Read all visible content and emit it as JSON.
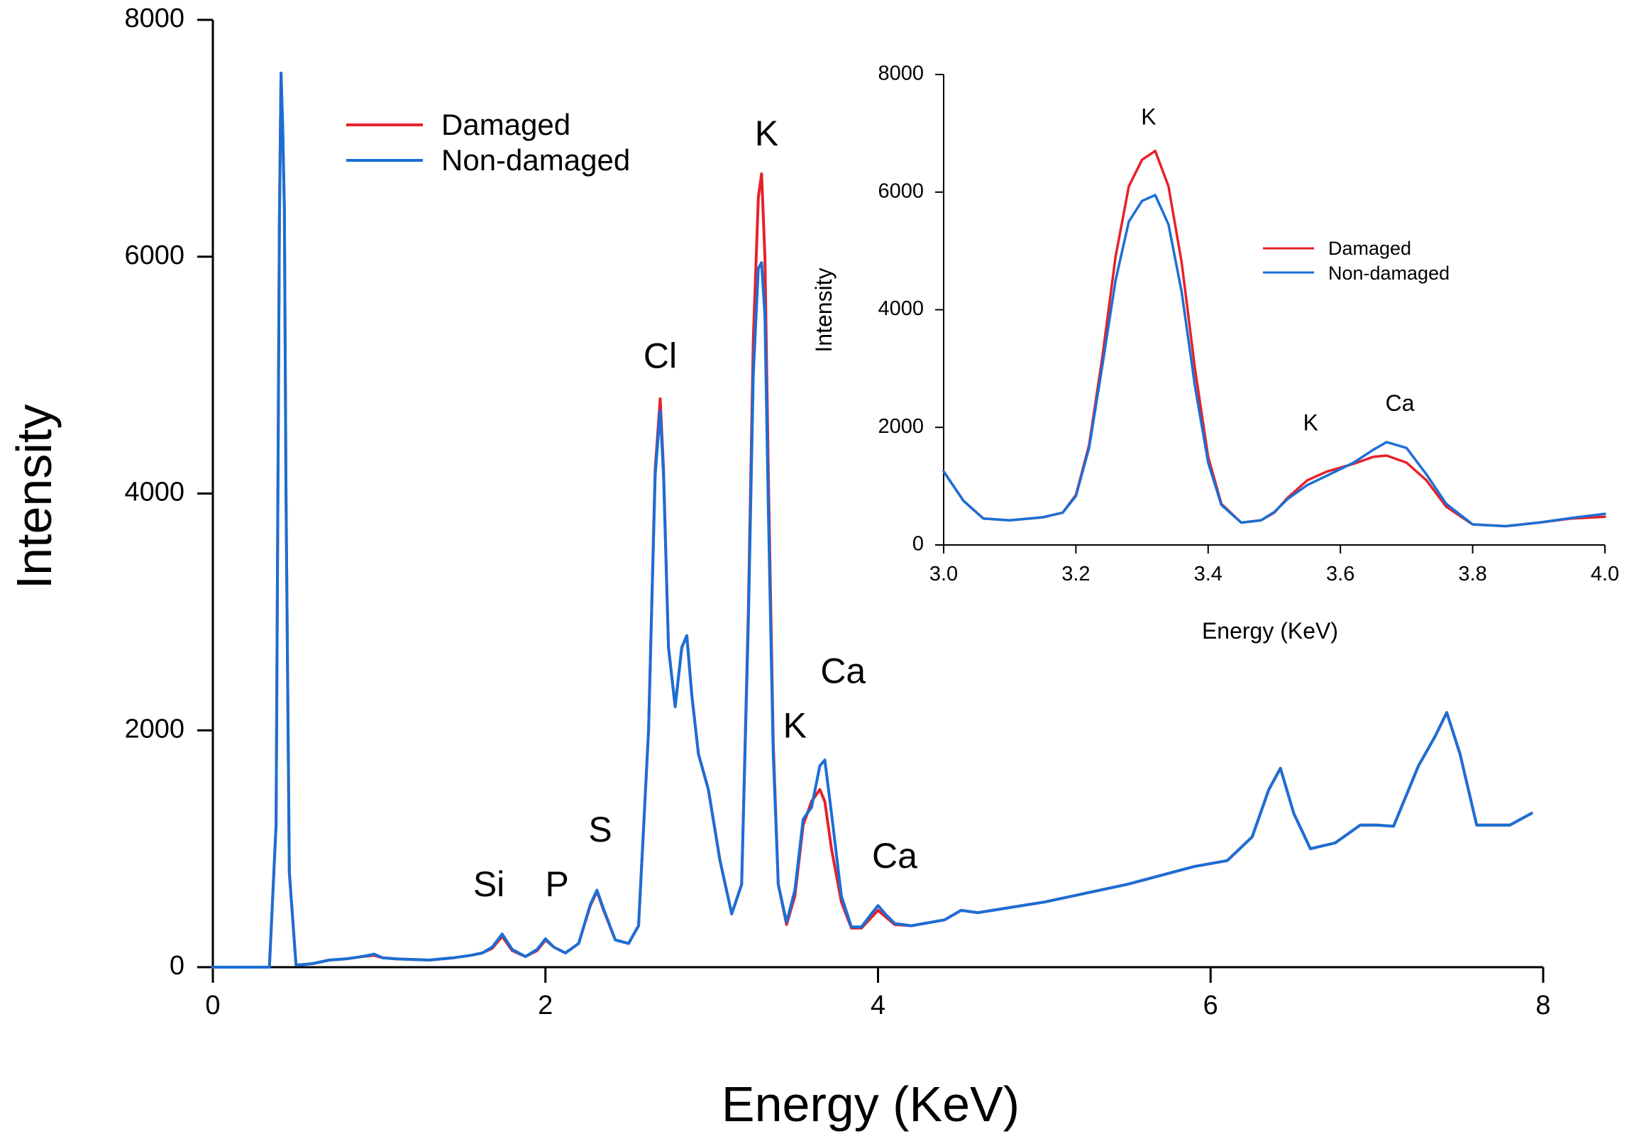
{
  "colors": {
    "damaged": "#e8202a",
    "non_damaged": "#1a6fd6"
  },
  "chart_data": [
    {
      "type": "line",
      "name": "main",
      "title": "",
      "xlabel": "Energy (KeV)",
      "ylabel": "Intensity",
      "xlim": [
        0,
        8
      ],
      "ylim": [
        0,
        8000
      ],
      "x_ticks": [
        "0",
        "2",
        "4",
        "6",
        "8"
      ],
      "y_ticks": [
        "0",
        "2000",
        "4000",
        "6000",
        "8000"
      ],
      "legend": [
        "Damaged",
        "Non-damaged"
      ],
      "legend_position": "top-center",
      "annotations": [
        {
          "text": "Si",
          "x": 1.66,
          "y": 600
        },
        {
          "text": "P",
          "x": 2.07,
          "y": 600
        },
        {
          "text": "S",
          "x": 2.33,
          "y": 1060
        },
        {
          "text": "Cl",
          "x": 2.69,
          "y": 5060
        },
        {
          "text": "K",
          "x": 3.33,
          "y": 6940
        },
        {
          "text": "K",
          "x": 3.5,
          "y": 1940
        },
        {
          "text": "Ca",
          "x": 3.79,
          "y": 2400
        },
        {
          "text": "Ca",
          "x": 4.1,
          "y": 840
        }
      ],
      "series": [
        {
          "name": "Damaged",
          "x": [
            0,
            0.34,
            0.38,
            0.4,
            0.41,
            0.42,
            0.43,
            0.44,
            0.46,
            0.5,
            0.52,
            0.6,
            0.7,
            0.8,
            0.9,
            0.97,
            1.02,
            1.1,
            1.3,
            1.45,
            1.55,
            1.62,
            1.68,
            1.74,
            1.8,
            1.88,
            1.95,
            2.0,
            2.05,
            2.12,
            2.2,
            2.27,
            2.31,
            2.35,
            2.42,
            2.5,
            2.56,
            2.62,
            2.66,
            2.69,
            2.71,
            2.74,
            2.78,
            2.82,
            2.85,
            2.88,
            2.92,
            2.98,
            3.05,
            3.12,
            3.18,
            3.22,
            3.25,
            3.28,
            3.3,
            3.32,
            3.34,
            3.37,
            3.4,
            3.45,
            3.5,
            3.55,
            3.6,
            3.65,
            3.68,
            3.72,
            3.78,
            3.84,
            3.9,
            3.96,
            4.0,
            4.05,
            4.1,
            4.2,
            4.4,
            4.5,
            4.6,
            5.0,
            5.5,
            5.9,
            6.1,
            6.25,
            6.35,
            6.42,
            6.5,
            6.6,
            6.75,
            6.9,
            7.0,
            7.1,
            7.25,
            7.35,
            7.42,
            7.5,
            7.6,
            7.8,
            7.93
          ],
          "y": [
            0,
            0,
            1200,
            6300,
            7550,
            7100,
            6400,
            4000,
            800,
            20,
            20,
            30,
            60,
            70,
            90,
            100,
            80,
            70,
            60,
            80,
            100,
            120,
            160,
            260,
            140,
            90,
            140,
            230,
            170,
            120,
            200,
            520,
            640,
            480,
            230,
            200,
            350,
            2000,
            4200,
            4800,
            4200,
            2700,
            2200,
            2700,
            2800,
            2300,
            1800,
            1500,
            900,
            450,
            700,
            3000,
            5300,
            6500,
            6700,
            6000,
            4200,
            1900,
            700,
            360,
            600,
            1200,
            1400,
            1500,
            1400,
            1000,
            550,
            330,
            330,
            420,
            480,
            420,
            360,
            350,
            400,
            480,
            460,
            550,
            700,
            850,
            900,
            1100,
            1500,
            1680,
            1300,
            1000,
            1050,
            1200,
            1200,
            1190,
            1700,
            1950,
            2150,
            1800,
            1200,
            1200,
            1300
          ]
        },
        {
          "name": "Non-damaged",
          "x": [
            0,
            0.34,
            0.38,
            0.4,
            0.41,
            0.42,
            0.43,
            0.44,
            0.46,
            0.5,
            0.52,
            0.6,
            0.7,
            0.8,
            0.9,
            0.97,
            1.02,
            1.1,
            1.3,
            1.45,
            1.55,
            1.62,
            1.68,
            1.74,
            1.8,
            1.88,
            1.95,
            2.0,
            2.05,
            2.12,
            2.2,
            2.27,
            2.31,
            2.35,
            2.42,
            2.5,
            2.56,
            2.62,
            2.66,
            2.69,
            2.71,
            2.74,
            2.78,
            2.82,
            2.85,
            2.88,
            2.92,
            2.98,
            3.05,
            3.12,
            3.18,
            3.22,
            3.25,
            3.28,
            3.3,
            3.32,
            3.34,
            3.37,
            3.4,
            3.45,
            3.5,
            3.55,
            3.6,
            3.65,
            3.68,
            3.72,
            3.78,
            3.84,
            3.9,
            3.96,
            4.0,
            4.05,
            4.1,
            4.2,
            4.4,
            4.5,
            4.6,
            5.0,
            5.5,
            5.9,
            6.1,
            6.25,
            6.35,
            6.42,
            6.5,
            6.6,
            6.75,
            6.9,
            7.0,
            7.1,
            7.25,
            7.35,
            7.42,
            7.5,
            7.6,
            7.8,
            7.93
          ],
          "y": [
            0,
            0,
            1200,
            6300,
            7550,
            7100,
            6400,
            4000,
            800,
            20,
            20,
            30,
            60,
            70,
            90,
            110,
            80,
            70,
            60,
            80,
            100,
            120,
            170,
            280,
            150,
            90,
            150,
            240,
            170,
            120,
            200,
            530,
            650,
            490,
            230,
            200,
            350,
            2000,
            4150,
            4700,
            4150,
            2700,
            2200,
            2700,
            2800,
            2300,
            1800,
            1500,
            900,
            450,
            700,
            2900,
            5000,
            5900,
            5950,
            5500,
            3900,
            1800,
            700,
            380,
            650,
            1250,
            1350,
            1700,
            1750,
            1300,
            600,
            340,
            340,
            450,
            520,
            440,
            370,
            350,
            400,
            480,
            460,
            550,
            700,
            850,
            900,
            1100,
            1500,
            1680,
            1300,
            1000,
            1050,
            1200,
            1200,
            1190,
            1700,
            1950,
            2150,
            1800,
            1200,
            1200,
            1300
          ]
        }
      ]
    },
    {
      "type": "line",
      "name": "inset",
      "title": "",
      "xlabel": "Energy (KeV)",
      "ylabel": "Intensity",
      "xlim": [
        3.0,
        4.0
      ],
      "ylim": [
        0,
        8000
      ],
      "x_ticks": [
        "3.0",
        "3.2",
        "3.4",
        "3.6",
        "3.8",
        "4.0"
      ],
      "y_ticks": [
        "0",
        "2000",
        "4000",
        "6000",
        "8000"
      ],
      "legend": [
        "Damaged",
        "Non-damaged"
      ],
      "legend_position": "middle-right",
      "annotations": [
        {
          "text": "K",
          "x": 3.31,
          "y": 7150
        },
        {
          "text": "K",
          "x": 3.555,
          "y": 1950
        },
        {
          "text": "Ca",
          "x": 3.69,
          "y": 2280
        }
      ],
      "series": [
        {
          "name": "Damaged",
          "x": [
            3.0,
            3.03,
            3.06,
            3.1,
            3.15,
            3.18,
            3.2,
            3.22,
            3.24,
            3.26,
            3.28,
            3.3,
            3.32,
            3.34,
            3.36,
            3.38,
            3.4,
            3.42,
            3.45,
            3.48,
            3.5,
            3.52,
            3.55,
            3.58,
            3.62,
            3.65,
            3.67,
            3.7,
            3.73,
            3.76,
            3.8,
            3.85,
            3.9,
            3.95,
            4.0
          ],
          "y": [
            1250,
            750,
            450,
            420,
            470,
            550,
            850,
            1700,
            3200,
            4900,
            6100,
            6550,
            6700,
            6100,
            4800,
            3000,
            1500,
            700,
            380,
            420,
            550,
            800,
            1100,
            1250,
            1380,
            1500,
            1520,
            1400,
            1100,
            650,
            350,
            320,
            380,
            450,
            480
          ]
        },
        {
          "name": "Non-damaged",
          "x": [
            3.0,
            3.03,
            3.06,
            3.1,
            3.15,
            3.18,
            3.2,
            3.22,
            3.24,
            3.26,
            3.28,
            3.3,
            3.32,
            3.34,
            3.36,
            3.38,
            3.4,
            3.42,
            3.45,
            3.48,
            3.5,
            3.52,
            3.55,
            3.58,
            3.62,
            3.65,
            3.67,
            3.7,
            3.73,
            3.76,
            3.8,
            3.85,
            3.9,
            3.95,
            4.0
          ],
          "y": [
            1250,
            750,
            450,
            420,
            470,
            550,
            830,
            1650,
            3050,
            4500,
            5500,
            5850,
            5950,
            5450,
            4300,
            2700,
            1400,
            680,
            380,
            420,
            560,
            780,
            1020,
            1180,
            1400,
            1620,
            1750,
            1650,
            1200,
            700,
            350,
            320,
            380,
            460,
            530
          ]
        }
      ]
    }
  ]
}
